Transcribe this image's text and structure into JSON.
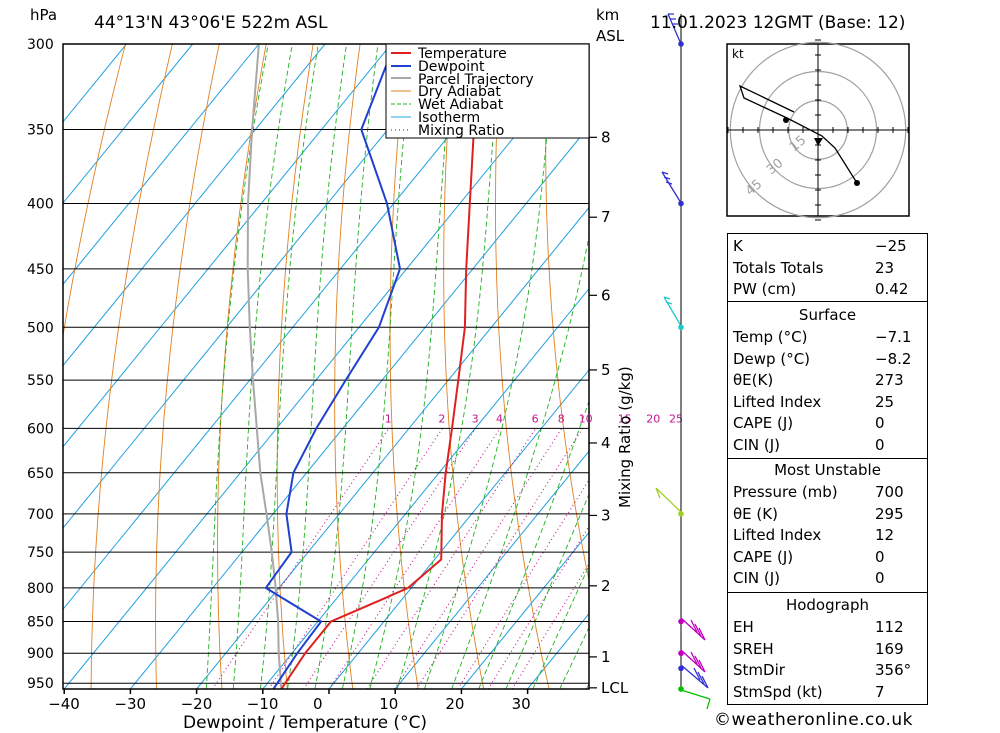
{
  "header": {
    "pressure_unit": "hPa",
    "location": "44°13'N  43°06'E  522m  ASL",
    "height_unit": "km",
    "height_ref": "ASL",
    "datetime": "11.01.2023  12GMT  (Base: 12)"
  },
  "chart_data": {
    "type": "line",
    "title": "",
    "xlabel": "Dewpoint / Temperature (°C)",
    "ylabel": "hPa",
    "x_ticks": [
      -40,
      -30,
      -20,
      -10,
      0,
      10,
      20,
      30
    ],
    "x_tick_labels": [
      "−40",
      "−30",
      "−20",
      "−10",
      "0",
      "10",
      "20",
      "30"
    ],
    "xlim": [
      -40,
      40
    ],
    "ylim": [
      960,
      300
    ],
    "y_scale": "log",
    "y_ticks": [
      300,
      350,
      400,
      450,
      500,
      550,
      600,
      650,
      700,
      750,
      800,
      850,
      900,
      950
    ],
    "y_tick_labels": [
      "300",
      "350",
      "400",
      "450",
      "500",
      "550",
      "600",
      "650",
      "700",
      "750",
      "800",
      "850",
      "900",
      "950"
    ],
    "km_ticks": [
      {
        "label": "8",
        "p": 355
      },
      {
        "label": "7",
        "p": 410
      },
      {
        "label": "6",
        "p": 472
      },
      {
        "label": "5",
        "p": 540
      },
      {
        "label": "4",
        "p": 616
      },
      {
        "label": "3",
        "p": 702
      },
      {
        "label": "2",
        "p": 797
      },
      {
        "label": "1",
        "p": 906
      },
      {
        "label": "LCL",
        "p": 958
      }
    ],
    "mixing_ratio_label": "Mixing Ratio (g/kg)",
    "mixing_ratio_values": [
      1,
      2,
      3,
      4,
      6,
      8,
      10,
      15,
      20,
      25
    ],
    "mixing_ratio_labels": [
      "1",
      "2",
      "3",
      "4",
      "6",
      "8",
      "10",
      "15",
      "20",
      "25"
    ],
    "legend": [
      "Temperature",
      "Dewpoint",
      "Parcel Trajectory",
      "Dry Adiabat",
      "Wet Adiabat",
      "Isotherm",
      "Mixing Ratio"
    ],
    "legend_position": "top-right",
    "grid": true,
    "series": [
      {
        "name": "Temperature",
        "points": [
          {
            "p": 960,
            "t": -7.2
          },
          {
            "p": 900,
            "t": -8.0
          },
          {
            "p": 850,
            "t": -8.0
          },
          {
            "p": 820,
            "t": -3.5
          },
          {
            "p": 800,
            "t": -0.5
          },
          {
            "p": 760,
            "t": 1.0
          },
          {
            "p": 700,
            "t": -4.5
          },
          {
            "p": 650,
            "t": -9.0
          },
          {
            "p": 600,
            "t": -13.5
          },
          {
            "p": 550,
            "t": -18.5
          },
          {
            "p": 500,
            "t": -24.0
          },
          {
            "p": 450,
            "t": -31.0
          },
          {
            "p": 400,
            "t": -38.5
          },
          {
            "p": 350,
            "t": -47.0
          },
          {
            "p": 300,
            "t": -55.5
          }
        ]
      },
      {
        "name": "Dewpoint",
        "points": [
          {
            "p": 960,
            "t": -8.4
          },
          {
            "p": 900,
            "t": -9.2
          },
          {
            "p": 850,
            "t": -9.5
          },
          {
            "p": 800,
            "t": -22.0
          },
          {
            "p": 750,
            "t": -22.5
          },
          {
            "p": 700,
            "t": -28.0
          },
          {
            "p": 650,
            "t": -32.0
          },
          {
            "p": 600,
            "t": -34.0
          },
          {
            "p": 550,
            "t": -35.5
          },
          {
            "p": 500,
            "t": -37.0
          },
          {
            "p": 450,
            "t": -41.0
          },
          {
            "p": 400,
            "t": -51.0
          },
          {
            "p": 350,
            "t": -64.0
          },
          {
            "p": 300,
            "t": -69.5
          }
        ]
      },
      {
        "name": "Parcel Trajectory",
        "points": [
          {
            "p": 960,
            "t": -7.2
          },
          {
            "p": 900,
            "t": -12.0
          },
          {
            "p": 850,
            "t": -16.0
          },
          {
            "p": 800,
            "t": -20.5
          },
          {
            "p": 750,
            "t": -25.5
          },
          {
            "p": 700,
            "t": -31.0
          },
          {
            "p": 650,
            "t": -37.0
          },
          {
            "p": 600,
            "t": -43.0
          },
          {
            "p": 550,
            "t": -49.5
          },
          {
            "p": 500,
            "t": -56.5
          },
          {
            "p": 450,
            "t": -64.0
          },
          {
            "p": 400,
            "t": -72.0
          },
          {
            "p": 350,
            "t": -80.5
          },
          {
            "p": 300,
            "t": -90.0
          }
        ]
      }
    ]
  },
  "wind_profile": {
    "levels": [
      {
        "p": 300,
        "color": "#3030d0"
      },
      {
        "p": 400,
        "color": "#3030d0"
      },
      {
        "p": 500,
        "color": "#20c8c8"
      },
      {
        "p": 700,
        "color": "#a0d020"
      },
      {
        "p": 850,
        "color": "#c000c0"
      },
      {
        "p": 900,
        "color": "#c000c0"
      },
      {
        "p": 925,
        "color": "#3030d0"
      },
      {
        "p": 960,
        "color": "#00c000"
      }
    ]
  },
  "hodograph": {
    "unit": "kt",
    "ring_labels": [
      "15",
      "30",
      "45"
    ]
  },
  "indices": {
    "block1": [
      {
        "label": "K",
        "value": "−25"
      },
      {
        "label": "Totals Totals",
        "value": "23"
      },
      {
        "label": "PW (cm)",
        "value": "0.42"
      }
    ],
    "surface_title": "Surface",
    "surface": [
      {
        "label": "Temp (°C)",
        "value": "−7.1"
      },
      {
        "label": "Dewp (°C)",
        "value": "−8.2"
      },
      {
        "label": "θE(K)",
        "value": "273"
      },
      {
        "label": "Lifted Index",
        "value": "25"
      },
      {
        "label": "CAPE (J)",
        "value": "0"
      },
      {
        "label": "CIN (J)",
        "value": "0"
      }
    ],
    "mu_title": "Most Unstable",
    "most_unstable": [
      {
        "label": "Pressure (mb)",
        "value": "700"
      },
      {
        "label": "θE (K)",
        "value": "295"
      },
      {
        "label": "Lifted Index",
        "value": "12"
      },
      {
        "label": "CAPE (J)",
        "value": "0"
      },
      {
        "label": "CIN (J)",
        "value": "0"
      }
    ],
    "hodo_title": "Hodograph",
    "hodograph": [
      {
        "label": "EH",
        "value": "112"
      },
      {
        "label": "SREH",
        "value": "169"
      },
      {
        "label": "StmDir",
        "value": "356°"
      },
      {
        "label": "StmSpd (kt)",
        "value": "7"
      }
    ]
  },
  "colors": {
    "temperature": "#e02020",
    "dewpoint": "#2040d0",
    "parcel": "#a8a8a8",
    "dry_adiabat": "#e08020",
    "wet_adiabat": "#20b020",
    "isotherm": "#20a0e0",
    "mixing_ratio": "#c0168c"
  },
  "credit": "©weatheronline.co.uk"
}
